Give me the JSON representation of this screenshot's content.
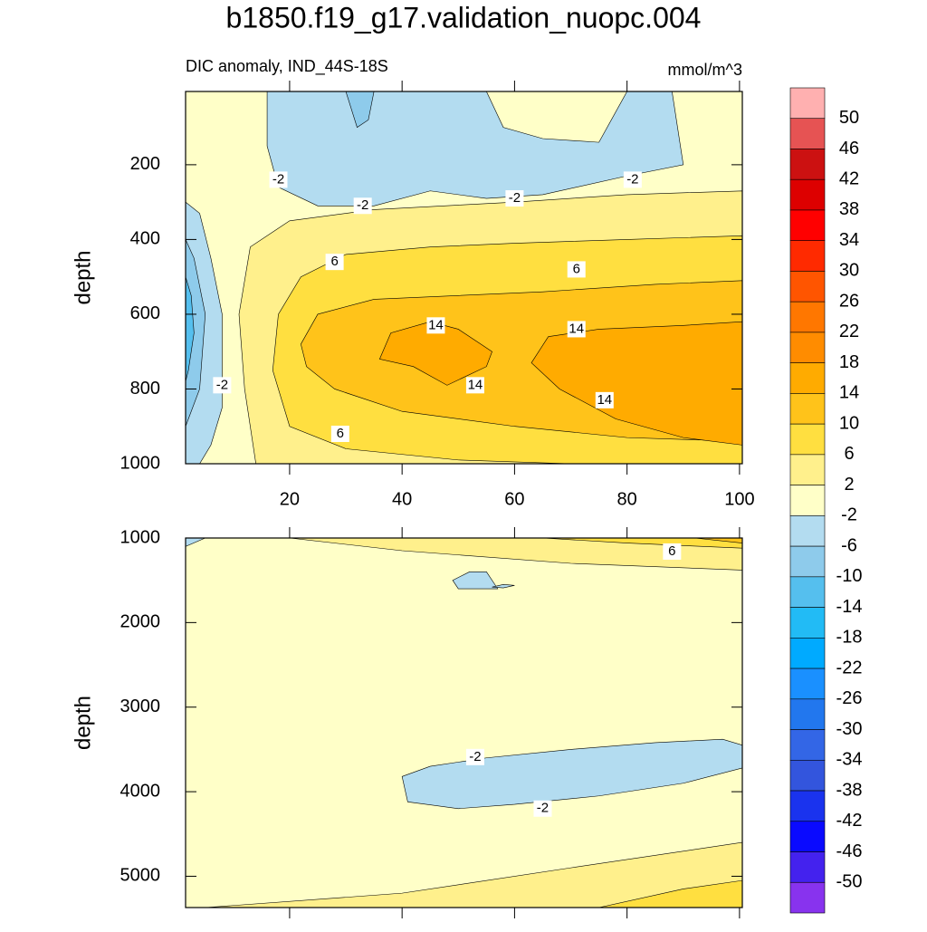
{
  "title": "b1850.f19_g17.validation_nuopc.004",
  "colorbar": {
    "levels": [
      50,
      46,
      42,
      38,
      34,
      30,
      26,
      22,
      18,
      14,
      10,
      6,
      2,
      -2,
      -6,
      -10,
      -14,
      -18,
      -22,
      -26,
      -30,
      -34,
      -38,
      -42,
      -46,
      -50
    ],
    "colors": [
      "#ffb0b0",
      "#e65353",
      "#cc1111",
      "#dd0000",
      "#ff0000",
      "#ff2a00",
      "#ff5500",
      "#ff7700",
      "#ff8c00",
      "#ffab00",
      "#ffc31a",
      "#ffdf40",
      "#fff08c",
      "#ffffc8",
      "#b3dcf0",
      "#8ecbeb",
      "#55bfee",
      "#22bbf5",
      "#00aaff",
      "#1a90ff",
      "#2277ee",
      "#3366e6",
      "#3355dd",
      "#1a33ee",
      "#0a0aff",
      "#4422ee",
      "#8833ee"
    ]
  },
  "chart_data": [
    {
      "type": "contour",
      "subtitle_left": "DIC anomaly, IND_44S-18S",
      "subtitle_right": "mmol/m^3",
      "y_label": "depth",
      "xlim": [
        1.5,
        100.5
      ],
      "ylim": [
        1000,
        4
      ],
      "xticks": [
        20,
        40,
        60,
        80,
        100
      ],
      "yticks": [
        200,
        400,
        600,
        800,
        1000
      ],
      "show_xtick_labels": true,
      "regions": [
        {
          "value": 4,
          "x": [
            14,
            12,
            11,
            13,
            20,
            35,
            60,
            80,
            100.5,
            100.5
          ],
          "y": [
            1000,
            800,
            600,
            420,
            350,
            320,
            300,
            280,
            270,
            1000
          ]
        },
        {
          "value": 8,
          "x": [
            17,
            18,
            22,
            30,
            45,
            60,
            80,
            100.5,
            100.5,
            70,
            50,
            30,
            20
          ],
          "y": [
            750,
            600,
            500,
            440,
            420,
            410,
            400,
            390,
            1000,
            1000,
            990,
            960,
            900
          ]
        },
        {
          "value": 12,
          "x": [
            22,
            25,
            35,
            50,
            65,
            85,
            100.5,
            100.5,
            80,
            60,
            40,
            28,
            23
          ],
          "y": [
            680,
            600,
            560,
            550,
            540,
            520,
            510,
            940,
            930,
            900,
            860,
            800,
            740
          ]
        },
        {
          "value": 16,
          "x": [
            36,
            38,
            45,
            50,
            56,
            55,
            48,
            42
          ],
          "y": [
            720,
            650,
            620,
            640,
            700,
            740,
            790,
            740
          ]
        },
        {
          "value": 16,
          "x": [
            63,
            66,
            75,
            90,
            100.5,
            100.5,
            90,
            78,
            68
          ],
          "y": [
            730,
            660,
            640,
            630,
            620,
            950,
            930,
            880,
            800
          ]
        },
        {
          "value": -4,
          "x": [
            16,
            55,
            58,
            65,
            75,
            80,
            88,
            90,
            80,
            65,
            55,
            45,
            35,
            25,
            18,
            16
          ],
          "y": [
            4,
            4,
            100,
            130,
            140,
            4,
            4,
            200,
            230,
            280,
            290,
            270,
            310,
            310,
            260,
            150
          ]
        },
        {
          "value": -8,
          "x": [
            30,
            35,
            34,
            32
          ],
          "y": [
            4,
            4,
            80,
            100
          ]
        },
        {
          "value": -4,
          "x": [
            1.5,
            4,
            6,
            8,
            8,
            6,
            4,
            1.5
          ],
          "y": [
            300,
            330,
            450,
            600,
            850,
            950,
            1000,
            1000
          ]
        },
        {
          "value": -8,
          "x": [
            1.5,
            3,
            5,
            4,
            1.5
          ],
          "y": [
            400,
            450,
            600,
            800,
            900
          ]
        },
        {
          "value": -12,
          "x": [
            1.5,
            2.5,
            3,
            2,
            1.5
          ],
          "y": [
            500,
            550,
            650,
            750,
            780
          ]
        }
      ],
      "contour_labels": [
        {
          "x": 18,
          "y": 240,
          "value": -2
        },
        {
          "x": 33,
          "y": 310,
          "value": -2
        },
        {
          "x": 60,
          "y": 290,
          "value": -2
        },
        {
          "x": 81,
          "y": 240,
          "value": -2
        },
        {
          "x": 28,
          "y": 460,
          "value": 6
        },
        {
          "x": 71,
          "y": 480,
          "value": 6
        },
        {
          "x": 46,
          "y": 630,
          "value": 14
        },
        {
          "x": 71,
          "y": 640,
          "value": 14
        },
        {
          "x": 53,
          "y": 790,
          "value": 14
        },
        {
          "x": 76,
          "y": 830,
          "value": 14
        },
        {
          "x": 8,
          "y": 790,
          "value": -2
        },
        {
          "x": 29,
          "y": 920,
          "value": 6
        }
      ]
    },
    {
      "type": "contour",
      "y_label": "depth",
      "xlim": [
        1.5,
        100.5
      ],
      "ylim": [
        5370,
        1000
      ],
      "xticks": [
        20,
        40,
        60,
        80,
        100
      ],
      "yticks": [
        1000,
        2000,
        3000,
        4000,
        5000
      ],
      "show_xtick_labels": false,
      "regions": [
        {
          "value": 4,
          "x": [
            20,
            100.5,
            100.5,
            70,
            40
          ],
          "y": [
            1000,
            1000,
            1380,
            1300,
            1150
          ]
        },
        {
          "value": 8,
          "x": [
            65,
            100.5,
            100.5,
            80
          ],
          "y": [
            1000,
            1000,
            1120,
            1060
          ]
        },
        {
          "value": 12,
          "x": [
            92,
            100.5,
            100.5
          ],
          "y": [
            1000,
            1000,
            1060
          ]
        },
        {
          "value": -4,
          "x": [
            40,
            45,
            55,
            70,
            85,
            97,
            100.5,
            100.5,
            90,
            75,
            60,
            50,
            41
          ],
          "y": [
            3820,
            3700,
            3600,
            3500,
            3420,
            3380,
            3450,
            3720,
            3900,
            4050,
            4150,
            4200,
            4120
          ]
        },
        {
          "value": -4,
          "x": [
            52,
            55,
            57,
            50,
            49
          ],
          "y": [
            1400,
            1400,
            1600,
            1600,
            1500
          ]
        },
        {
          "value": -4,
          "x": [
            58,
            60,
            58,
            56
          ],
          "y": [
            1550,
            1560,
            1590,
            1580
          ]
        },
        {
          "value": 4,
          "x": [
            5,
            40,
            70,
            100.5,
            100.5
          ],
          "y": [
            5370,
            5200,
            4900,
            4600,
            5370
          ]
        },
        {
          "value": 8,
          "x": [
            75,
            90,
            100.5,
            100.5
          ],
          "y": [
            5370,
            5150,
            5050,
            5370
          ]
        },
        {
          "value": -4,
          "x": [
            1.5,
            5,
            1.5
          ],
          "y": [
            1000,
            1000,
            1100
          ]
        }
      ],
      "contour_labels": [
        {
          "x": 88,
          "y": 1160,
          "value": 6
        },
        {
          "x": 53,
          "y": 3590,
          "value": -2
        },
        {
          "x": 65,
          "y": 4200,
          "value": -2
        }
      ]
    }
  ]
}
